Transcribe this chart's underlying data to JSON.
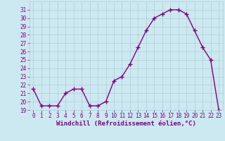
{
  "x": [
    0,
    1,
    2,
    3,
    4,
    5,
    6,
    7,
    8,
    9,
    10,
    11,
    12,
    13,
    14,
    15,
    16,
    17,
    18,
    19,
    20,
    21,
    22,
    23
  ],
  "y": [
    21.5,
    19.5,
    19.5,
    19.5,
    21.0,
    21.5,
    21.5,
    19.5,
    19.5,
    20.0,
    22.5,
    23.0,
    24.5,
    26.5,
    28.5,
    30.0,
    30.5,
    31.0,
    31.0,
    30.5,
    28.5,
    26.5,
    25.0,
    19.0
  ],
  "line_color": "#800080",
  "marker": "+",
  "marker_size": 4,
  "bg_color": "#cce8f0",
  "grid_color": "#b0cdd8",
  "xlabel": "Windchill (Refroidissement éolien,°C)",
  "xlabel_color": "#800080",
  "tick_color": "#800080",
  "ylim_min": 19,
  "ylim_max": 32,
  "ytick_min": 19,
  "ytick_max": 31,
  "xticks": [
    0,
    1,
    2,
    3,
    4,
    5,
    6,
    7,
    8,
    9,
    10,
    11,
    12,
    13,
    14,
    15,
    16,
    17,
    18,
    19,
    20,
    21,
    22,
    23
  ],
  "tick_fontsize": 5.5,
  "xlabel_fontsize": 6.5,
  "linewidth": 1.0,
  "marker_linewidth": 1.0
}
